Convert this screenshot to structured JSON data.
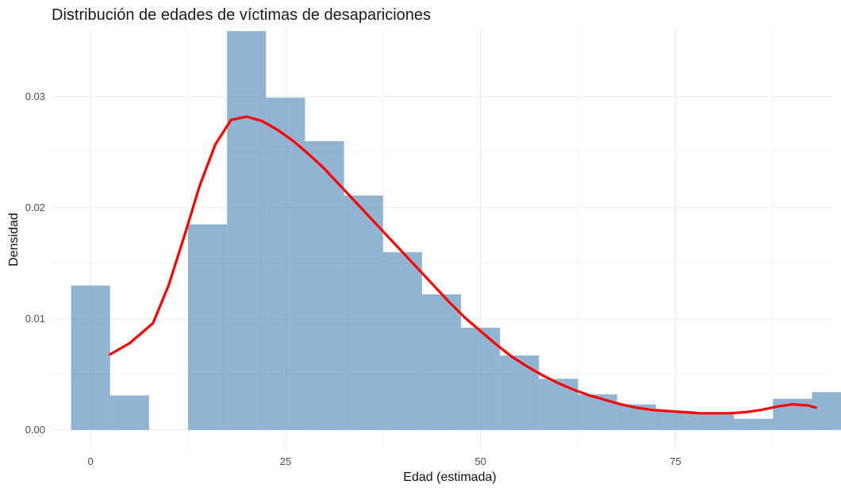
{
  "chart_data": {
    "type": "bar",
    "subtype": "histogram_with_density",
    "title": "Distribución de edades de víctimas de desapariciones",
    "xlabel": "Edad (estimada)",
    "ylabel": "Densidad",
    "xlim": [
      -5,
      95
    ],
    "ylim": [
      -0.0018,
      0.0362
    ],
    "x_ticks": [
      {
        "value": 0,
        "label": "0"
      },
      {
        "value": 25,
        "label": "25"
      },
      {
        "value": 50,
        "label": "50"
      },
      {
        "value": 75,
        "label": "75"
      }
    ],
    "y_ticks": [
      {
        "value": 0.0,
        "label": "0.00"
      },
      {
        "value": 0.01,
        "label": "0.01"
      },
      {
        "value": 0.02,
        "label": "0.02"
      },
      {
        "value": 0.03,
        "label": "0.03"
      }
    ],
    "grid": true,
    "legend": "none",
    "bins": [
      {
        "x0": -2.5,
        "x1": 2.5,
        "value": 0.013
      },
      {
        "x0": 2.5,
        "x1": 7.5,
        "value": 0.0031
      },
      {
        "x0": 7.5,
        "x1": 12.5,
        "value": 0.0
      },
      {
        "x0": 12.5,
        "x1": 17.5,
        "value": 0.0185
      },
      {
        "x0": 17.5,
        "x1": 22.5,
        "value": 0.0359
      },
      {
        "x0": 22.5,
        "x1": 27.5,
        "value": 0.0299
      },
      {
        "x0": 27.5,
        "x1": 32.5,
        "value": 0.026
      },
      {
        "x0": 32.5,
        "x1": 37.5,
        "value": 0.0211
      },
      {
        "x0": 37.5,
        "x1": 42.5,
        "value": 0.016
      },
      {
        "x0": 42.5,
        "x1": 47.5,
        "value": 0.0122
      },
      {
        "x0": 47.5,
        "x1": 52.5,
        "value": 0.0092
      },
      {
        "x0": 52.5,
        "x1": 57.5,
        "value": 0.0067
      },
      {
        "x0": 57.5,
        "x1": 62.5,
        "value": 0.0046
      },
      {
        "x0": 62.5,
        "x1": 67.5,
        "value": 0.0032
      },
      {
        "x0": 67.5,
        "x1": 72.5,
        "value": 0.0023
      },
      {
        "x0": 72.5,
        "x1": 77.5,
        "value": 0.0017
      },
      {
        "x0": 77.5,
        "x1": 82.5,
        "value": 0.0014
      },
      {
        "x0": 82.5,
        "x1": 87.5,
        "value": 0.001
      },
      {
        "x0": 87.5,
        "x1": 92.5,
        "value": 0.0028
      },
      {
        "x0": 92.5,
        "x1": 97.5,
        "value": 0.0034
      }
    ],
    "density_curve": {
      "x": [
        2.5,
        5,
        8,
        10,
        12,
        14,
        16,
        18,
        20,
        22,
        24,
        26,
        28,
        30,
        32,
        34,
        36,
        38,
        40,
        42,
        44,
        46,
        48,
        50,
        52,
        54,
        56,
        58,
        60,
        62,
        64,
        66,
        68,
        70,
        72,
        74,
        76,
        78,
        80,
        82,
        84,
        86,
        88,
        90,
        92,
        93
      ],
      "y": [
        0.0068,
        0.0078,
        0.0096,
        0.013,
        0.0174,
        0.022,
        0.0257,
        0.0279,
        0.0282,
        0.0278,
        0.027,
        0.026,
        0.0248,
        0.0235,
        0.022,
        0.0205,
        0.019,
        0.0175,
        0.016,
        0.0145,
        0.013,
        0.0115,
        0.0101,
        0.0089,
        0.0077,
        0.0066,
        0.0057,
        0.0049,
        0.0042,
        0.0036,
        0.0031,
        0.0027,
        0.0023,
        0.002,
        0.0018,
        0.0017,
        0.0016,
        0.0015,
        0.0015,
        0.0015,
        0.0016,
        0.0018,
        0.0021,
        0.0023,
        0.0022,
        0.002
      ]
    },
    "colors": {
      "bar_fill": "#4682b4",
      "bar_opacity": 0.6,
      "density_line": "#ff0000",
      "grid_major": "#ebebeb",
      "grid_minor": "#f3f3f3"
    }
  }
}
